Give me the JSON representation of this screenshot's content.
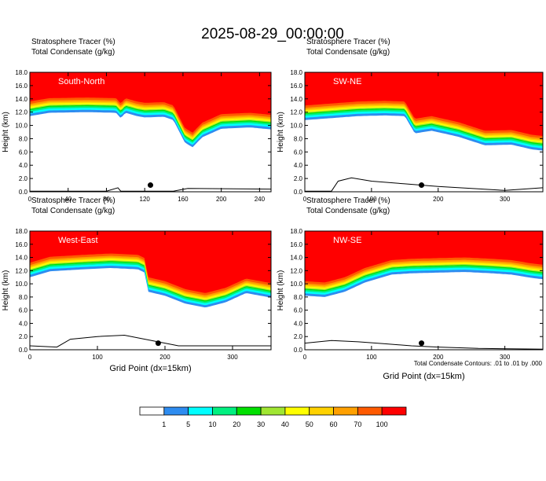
{
  "title": "2025-08-29_00:00:00",
  "panel_header_line1": "Stratosphere Tracer   (%)",
  "panel_header_line2": "Total Condensate   (g/kg)",
  "contour_note": "Total Condensate Contours: .01 to .01 by .000",
  "colors": {
    "bins": [
      "#ffffff",
      "#2e8cf0",
      "#00ffff",
      "#00f080",
      "#00e000",
      "#a0e632",
      "#ffff00",
      "#ffd200",
      "#ffa000",
      "#ff5a00",
      "#ff0000"
    ],
    "ground_marker": "#000000"
  },
  "chart_data": [
    {
      "type": "heatmap",
      "panel_label": "South-North",
      "ylabel": "Height (km)",
      "xlabel": "",
      "xlim": [
        0,
        252
      ],
      "ylim": [
        0,
        18
      ],
      "x_ticks": [
        "0",
        "40",
        "80",
        "120",
        "160",
        "200",
        "240"
      ],
      "x_tick_values": [
        0,
        40,
        80,
        120,
        160,
        200,
        240
      ],
      "y_ticks": [
        "0.0",
        "2.0",
        "4.0",
        "6.0",
        "8.0",
        "10.0",
        "12.0",
        "14.0",
        "16.0",
        "18.0"
      ],
      "tracer_base_km": [
        [
          0,
          13.6
        ],
        [
          20,
          14.1
        ],
        [
          60,
          14.2
        ],
        [
          90,
          14.1
        ],
        [
          95,
          13.3
        ],
        [
          100,
          14.1
        ],
        [
          112,
          13.6
        ],
        [
          120,
          13.4
        ],
        [
          140,
          13.5
        ],
        [
          150,
          13.0
        ],
        [
          162,
          9.6
        ],
        [
          170,
          8.9
        ],
        [
          180,
          10.4
        ],
        [
          200,
          11.7
        ],
        [
          230,
          11.9
        ],
        [
          252,
          11.6
        ]
      ],
      "marker": {
        "x": 126,
        "y": 1.0
      },
      "terrain_km": [
        [
          0,
          0.1
        ],
        [
          80,
          0.1
        ],
        [
          92,
          0.6
        ],
        [
          95,
          0.1
        ],
        [
          150,
          0.1
        ],
        [
          165,
          0.5
        ],
        [
          252,
          0.4
        ]
      ]
    },
    {
      "type": "heatmap",
      "panel_label": "SW-NE",
      "ylabel": "Height (km)",
      "xlabel": "",
      "xlim": [
        0,
        357
      ],
      "ylim": [
        0,
        18
      ],
      "x_ticks": [
        "0",
        "100",
        "200",
        "300"
      ],
      "x_tick_values": [
        0,
        100,
        200,
        300
      ],
      "y_ticks": [
        "0.0",
        "2.0",
        "4.0",
        "6.0",
        "8.0",
        "10.0",
        "12.0",
        "14.0",
        "16.0",
        "18.0"
      ],
      "tracer_base_km": [
        [
          0,
          13.0
        ],
        [
          40,
          13.3
        ],
        [
          80,
          13.6
        ],
        [
          120,
          13.7
        ],
        [
          150,
          13.6
        ],
        [
          165,
          11.0
        ],
        [
          190,
          11.4
        ],
        [
          230,
          10.5
        ],
        [
          270,
          9.2
        ],
        [
          310,
          9.3
        ],
        [
          340,
          8.6
        ],
        [
          357,
          8.4
        ]
      ],
      "marker": {
        "x": 175,
        "y": 1.0
      },
      "terrain_km": [
        [
          0,
          0.1
        ],
        [
          40,
          0.1
        ],
        [
          50,
          1.6
        ],
        [
          70,
          2.1
        ],
        [
          100,
          1.6
        ],
        [
          150,
          1.2
        ],
        [
          200,
          0.8
        ],
        [
          250,
          0.5
        ],
        [
          300,
          0.2
        ],
        [
          357,
          0.6
        ]
      ]
    },
    {
      "type": "heatmap",
      "panel_label": "West-East",
      "ylabel": "Height (km)",
      "xlabel": "Grid Point (dx=15km)",
      "xlim": [
        0,
        357
      ],
      "ylim": [
        0,
        18
      ],
      "x_ticks": [
        "0",
        "100",
        "200",
        "300"
      ],
      "x_tick_values": [
        0,
        100,
        200,
        300
      ],
      "y_ticks": [
        "0.0",
        "2.0",
        "4.0",
        "6.0",
        "8.0",
        "10.0",
        "12.0",
        "14.0",
        "16.0",
        "18.0"
      ],
      "tracer_base_km": [
        [
          0,
          13.2
        ],
        [
          30,
          14.1
        ],
        [
          80,
          14.4
        ],
        [
          120,
          14.6
        ],
        [
          160,
          14.4
        ],
        [
          170,
          13.9
        ],
        [
          175,
          11.0
        ],
        [
          200,
          10.4
        ],
        [
          230,
          9.2
        ],
        [
          260,
          8.6
        ],
        [
          290,
          9.4
        ],
        [
          320,
          10.8
        ],
        [
          357,
          10.1
        ]
      ],
      "marker": {
        "x": 190,
        "y": 1.0
      },
      "terrain_km": [
        [
          0,
          0.6
        ],
        [
          40,
          0.4
        ],
        [
          60,
          1.6
        ],
        [
          100,
          2.0
        ],
        [
          140,
          2.2
        ],
        [
          180,
          1.4
        ],
        [
          220,
          0.6
        ],
        [
          300,
          0.6
        ],
        [
          357,
          0.6
        ]
      ]
    },
    {
      "type": "heatmap",
      "panel_label": "NW-SE",
      "ylabel": "Height (km)",
      "xlabel": "Grid Point (dx=15km)",
      "xlim": [
        0,
        357
      ],
      "ylim": [
        0,
        18
      ],
      "x_ticks": [
        "0",
        "100",
        "200",
        "300"
      ],
      "x_tick_values": [
        0,
        100,
        200,
        300
      ],
      "y_ticks": [
        "0.0",
        "2.0",
        "4.0",
        "6.0",
        "8.0",
        "10.0",
        "12.0",
        "14.0",
        "16.0",
        "18.0"
      ],
      "tracer_base_km": [
        [
          0,
          10.4
        ],
        [
          30,
          10.2
        ],
        [
          60,
          11.0
        ],
        [
          90,
          12.4
        ],
        [
          130,
          13.6
        ],
        [
          160,
          13.8
        ],
        [
          200,
          13.9
        ],
        [
          240,
          14.0
        ],
        [
          280,
          13.8
        ],
        [
          310,
          13.6
        ],
        [
          340,
          13.1
        ],
        [
          357,
          12.9
        ]
      ],
      "marker": {
        "x": 175,
        "y": 1.0
      },
      "terrain_km": [
        [
          0,
          1.0
        ],
        [
          40,
          1.4
        ],
        [
          80,
          1.2
        ],
        [
          120,
          0.9
        ],
        [
          160,
          0.6
        ],
        [
          200,
          0.4
        ],
        [
          260,
          0.2
        ],
        [
          357,
          0.1
        ]
      ]
    }
  ],
  "colorbar": {
    "labels": [
      "1",
      "5",
      "10",
      "20",
      "30",
      "40",
      "50",
      "60",
      "70",
      "100"
    ]
  }
}
